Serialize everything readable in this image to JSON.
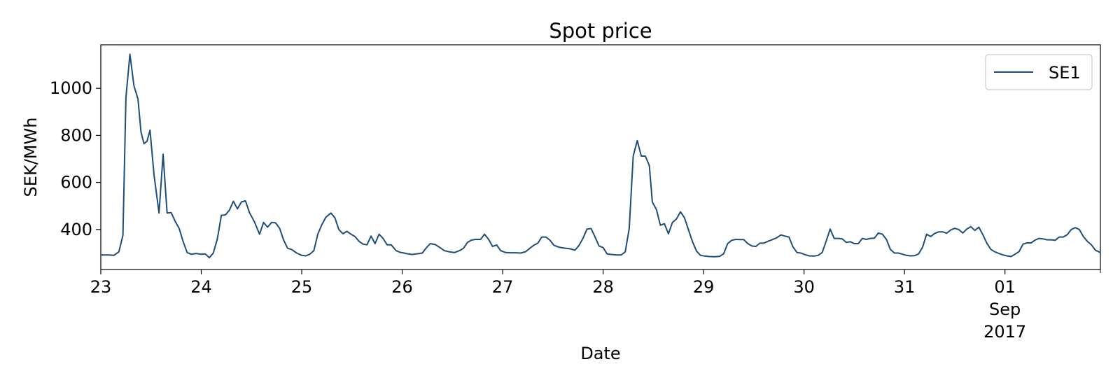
{
  "chart_data": {
    "type": "line",
    "title": "Spot price",
    "xlabel": "Date",
    "ylabel": "SEK/MWh",
    "ylim": [
      230,
      1185
    ],
    "yticks": [
      400,
      600,
      800,
      1000
    ],
    "x_range_days": [
      0,
      9.95
    ],
    "xticks": [
      {
        "label": "23",
        "sub": ""
      },
      {
        "label": "24",
        "sub": ""
      },
      {
        "label": "25",
        "sub": ""
      },
      {
        "label": "26",
        "sub": ""
      },
      {
        "label": "27",
        "sub": ""
      },
      {
        "label": "28",
        "sub": ""
      },
      {
        "label": "29",
        "sub": ""
      },
      {
        "label": "30",
        "sub": ""
      },
      {
        "label": "31",
        "sub": ""
      },
      {
        "label": "01",
        "sub": "Sep",
        "sub2": "2017"
      }
    ],
    "grid": false,
    "legend_position": "top-right",
    "series": [
      {
        "name": "SE1",
        "color": "#1f4e7a",
        "points": [
          [
            0.0,
            292
          ],
          [
            0.08,
            292
          ],
          [
            0.13,
            290
          ],
          [
            0.18,
            305
          ],
          [
            0.22,
            375
          ],
          [
            0.25,
            960
          ],
          [
            0.29,
            1145
          ],
          [
            0.33,
            1010
          ],
          [
            0.37,
            955
          ],
          [
            0.4,
            815
          ],
          [
            0.43,
            765
          ],
          [
            0.46,
            775
          ],
          [
            0.49,
            822
          ],
          [
            0.53,
            630
          ],
          [
            0.58,
            470
          ],
          [
            0.62,
            720
          ],
          [
            0.66,
            470
          ],
          [
            0.7,
            472
          ],
          [
            0.74,
            435
          ],
          [
            0.78,
            405
          ],
          [
            0.82,
            348
          ],
          [
            0.86,
            302
          ],
          [
            0.9,
            295
          ],
          [
            0.95,
            298
          ],
          [
            1.0,
            295
          ],
          [
            1.04,
            296
          ],
          [
            1.08,
            280
          ],
          [
            1.12,
            300
          ],
          [
            1.16,
            360
          ],
          [
            1.2,
            460
          ],
          [
            1.24,
            462
          ],
          [
            1.28,
            482
          ],
          [
            1.32,
            520
          ],
          [
            1.36,
            488
          ],
          [
            1.4,
            517
          ],
          [
            1.44,
            522
          ],
          [
            1.48,
            472
          ],
          [
            1.53,
            432
          ],
          [
            1.58,
            380
          ],
          [
            1.62,
            430
          ],
          [
            1.66,
            410
          ],
          [
            1.7,
            430
          ],
          [
            1.74,
            428
          ],
          [
            1.78,
            405
          ],
          [
            1.82,
            355
          ],
          [
            1.86,
            320
          ],
          [
            1.9,
            315
          ],
          [
            1.95,
            300
          ],
          [
            2.0,
            290
          ],
          [
            2.04,
            288
          ],
          [
            2.08,
            295
          ],
          [
            2.12,
            310
          ],
          [
            2.16,
            380
          ],
          [
            2.2,
            420
          ],
          [
            2.24,
            452
          ],
          [
            2.29,
            470
          ],
          [
            2.33,
            450
          ],
          [
            2.37,
            400
          ],
          [
            2.41,
            382
          ],
          [
            2.45,
            392
          ],
          [
            2.49,
            380
          ],
          [
            2.53,
            370
          ],
          [
            2.57,
            350
          ],
          [
            2.61,
            338
          ],
          [
            2.65,
            335
          ],
          [
            2.69,
            372
          ],
          [
            2.73,
            340
          ],
          [
            2.77,
            380
          ],
          [
            2.81,
            362
          ],
          [
            2.85,
            335
          ],
          [
            2.89,
            335
          ],
          [
            2.94,
            310
          ],
          [
            2.98,
            303
          ],
          [
            3.02,
            300
          ],
          [
            3.06,
            296
          ],
          [
            3.1,
            294
          ],
          [
            3.14,
            296
          ],
          [
            3.2,
            300
          ],
          [
            3.24,
            322
          ],
          [
            3.28,
            340
          ],
          [
            3.33,
            336
          ],
          [
            3.38,
            322
          ],
          [
            3.42,
            310
          ],
          [
            3.47,
            305
          ],
          [
            3.52,
            302
          ],
          [
            3.57,
            310
          ],
          [
            3.61,
            320
          ],
          [
            3.65,
            345
          ],
          [
            3.69,
            355
          ],
          [
            3.73,
            358
          ],
          [
            3.78,
            358
          ],
          [
            3.82,
            380
          ],
          [
            3.86,
            358
          ],
          [
            3.9,
            328
          ],
          [
            3.94,
            334
          ],
          [
            3.98,
            310
          ],
          [
            4.03,
            302
          ],
          [
            4.08,
            301
          ],
          [
            4.13,
            301
          ],
          [
            4.18,
            300
          ],
          [
            4.23,
            306
          ],
          [
            4.27,
            320
          ],
          [
            4.31,
            333
          ],
          [
            4.35,
            342
          ],
          [
            4.39,
            368
          ],
          [
            4.43,
            368
          ],
          [
            4.47,
            355
          ],
          [
            4.51,
            333
          ],
          [
            4.56,
            325
          ],
          [
            4.61,
            321
          ],
          [
            4.67,
            318
          ],
          [
            4.72,
            312
          ],
          [
            4.76,
            332
          ],
          [
            4.8,
            363
          ],
          [
            4.84,
            402
          ],
          [
            4.88,
            404
          ],
          [
            4.92,
            368
          ],
          [
            4.96,
            330
          ],
          [
            5.0,
            323
          ],
          [
            5.04,
            296
          ],
          [
            5.08,
            294
          ],
          [
            5.14,
            292
          ],
          [
            5.18,
            292
          ],
          [
            5.22,
            305
          ],
          [
            5.26,
            405
          ],
          [
            5.3,
            712
          ],
          [
            5.34,
            778
          ],
          [
            5.38,
            712
          ],
          [
            5.42,
            712
          ],
          [
            5.46,
            672
          ],
          [
            5.49,
            517
          ],
          [
            5.53,
            485
          ],
          [
            5.57,
            418
          ],
          [
            5.61,
            425
          ],
          [
            5.65,
            382
          ],
          [
            5.69,
            430
          ],
          [
            5.73,
            445
          ],
          [
            5.77,
            475
          ],
          [
            5.81,
            450
          ],
          [
            5.85,
            398
          ],
          [
            5.89,
            348
          ],
          [
            5.93,
            308
          ],
          [
            5.97,
            290
          ],
          [
            6.01,
            287
          ],
          [
            6.06,
            285
          ],
          [
            6.11,
            284
          ],
          [
            6.16,
            286
          ],
          [
            6.2,
            297
          ],
          [
            6.24,
            340
          ],
          [
            6.28,
            354
          ],
          [
            6.32,
            358
          ],
          [
            6.36,
            357
          ],
          [
            6.4,
            357
          ],
          [
            6.44,
            340
          ],
          [
            6.48,
            330
          ],
          [
            6.52,
            328
          ],
          [
            6.56,
            342
          ],
          [
            6.6,
            342
          ],
          [
            6.64,
            350
          ],
          [
            6.68,
            356
          ],
          [
            6.73,
            365
          ],
          [
            6.77,
            377
          ],
          [
            6.81,
            372
          ],
          [
            6.85,
            368
          ],
          [
            6.89,
            326
          ],
          [
            6.93,
            302
          ],
          [
            6.97,
            300
          ],
          [
            7.01,
            293
          ],
          [
            7.05,
            288
          ],
          [
            7.1,
            287
          ],
          [
            7.14,
            290
          ],
          [
            7.18,
            302
          ],
          [
            7.22,
            350
          ],
          [
            7.26,
            402
          ],
          [
            7.3,
            362
          ],
          [
            7.34,
            362
          ],
          [
            7.38,
            360
          ],
          [
            7.42,
            345
          ],
          [
            7.46,
            348
          ],
          [
            7.5,
            340
          ],
          [
            7.54,
            340
          ],
          [
            7.58,
            362
          ],
          [
            7.62,
            358
          ],
          [
            7.66,
            362
          ],
          [
            7.7,
            363
          ],
          [
            7.74,
            385
          ],
          [
            7.78,
            380
          ],
          [
            7.82,
            358
          ],
          [
            7.86,
            315
          ],
          [
            7.9,
            300
          ],
          [
            7.94,
            300
          ],
          [
            7.98,
            295
          ],
          [
            8.02,
            290
          ],
          [
            8.06,
            288
          ],
          [
            8.1,
            289
          ],
          [
            8.14,
            296
          ],
          [
            8.18,
            325
          ],
          [
            8.22,
            380
          ],
          [
            8.26,
            370
          ],
          [
            8.3,
            383
          ],
          [
            8.34,
            390
          ],
          [
            8.38,
            390
          ],
          [
            8.42,
            384
          ],
          [
            8.46,
            398
          ],
          [
            8.5,
            405
          ],
          [
            8.54,
            400
          ],
          [
            8.58,
            385
          ],
          [
            8.62,
            402
          ],
          [
            8.66,
            412
          ],
          [
            8.7,
            396
          ],
          [
            8.74,
            410
          ],
          [
            8.78,
            378
          ],
          [
            8.82,
            342
          ],
          [
            8.86,
            315
          ],
          [
            8.9,
            305
          ],
          [
            8.94,
            298
          ],
          [
            8.98,
            292
          ],
          [
            9.02,
            288
          ],
          [
            9.06,
            285
          ],
          [
            9.1,
            295
          ],
          [
            9.14,
            306
          ],
          [
            9.18,
            338
          ],
          [
            9.22,
            343
          ],
          [
            9.26,
            343
          ],
          [
            9.3,
            355
          ],
          [
            9.34,
            362
          ],
          [
            9.38,
            360
          ],
          [
            9.42,
            356
          ],
          [
            9.46,
            356
          ],
          [
            9.5,
            354
          ],
          [
            9.54,
            368
          ],
          [
            9.58,
            368
          ],
          [
            9.62,
            378
          ],
          [
            9.66,
            400
          ],
          [
            9.7,
            408
          ],
          [
            9.74,
            400
          ],
          [
            9.78,
            370
          ],
          [
            9.82,
            350
          ],
          [
            9.86,
            335
          ],
          [
            9.9,
            312
          ],
          [
            9.95,
            302
          ]
        ]
      }
    ]
  }
}
